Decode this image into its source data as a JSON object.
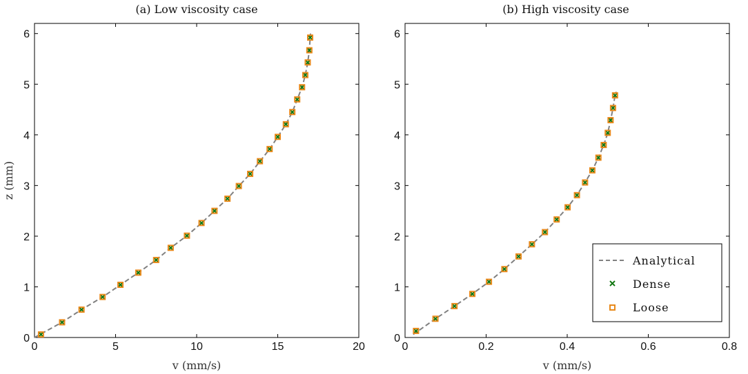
{
  "chart_data": [
    {
      "type": "scatter",
      "title": "(a) Low viscosity case",
      "xlabel": "v (mm/s)",
      "ylabel": "z (mm)",
      "xlim": [
        0,
        20
      ],
      "ylim": [
        0,
        6.2
      ],
      "xticks": [
        "0",
        "5",
        "10",
        "15",
        "20"
      ],
      "yticks": [
        "0",
        "1",
        "2",
        "3",
        "4",
        "5",
        "6"
      ],
      "grid": false,
      "series": [
        {
          "name": "Analytical",
          "style": "dashed-line",
          "color": "#808080",
          "x": [
            0.0,
            1.7,
            2.9,
            4.2,
            5.3,
            6.4,
            7.5,
            8.4,
            9.4,
            10.3,
            11.1,
            11.9,
            12.6,
            13.3,
            13.9,
            14.5,
            15.0,
            15.5,
            15.9,
            16.2,
            16.5,
            16.7,
            16.85,
            16.95,
            17.0,
            17.02
          ],
          "y": [
            0.0,
            0.3,
            0.55,
            0.8,
            1.04,
            1.28,
            1.53,
            1.77,
            2.01,
            2.26,
            2.5,
            2.74,
            2.99,
            3.23,
            3.48,
            3.72,
            3.96,
            4.21,
            4.45,
            4.7,
            4.94,
            5.18,
            5.43,
            5.67,
            5.92,
            6.0
          ]
        },
        {
          "name": "Dense",
          "style": "x-marker",
          "color": "#117711",
          "x": [
            0.4,
            1.7,
            2.9,
            4.2,
            5.3,
            6.4,
            7.5,
            8.4,
            9.4,
            10.3,
            11.1,
            11.9,
            12.6,
            13.3,
            13.9,
            14.5,
            15.0,
            15.5,
            15.9,
            16.2,
            16.5,
            16.7,
            16.85,
            16.95,
            17.0
          ],
          "y": [
            0.06,
            0.3,
            0.55,
            0.8,
            1.04,
            1.28,
            1.53,
            1.77,
            2.01,
            2.26,
            2.5,
            2.74,
            2.99,
            3.23,
            3.48,
            3.72,
            3.96,
            4.21,
            4.45,
            4.7,
            4.94,
            5.18,
            5.43,
            5.67,
            5.92
          ]
        },
        {
          "name": "Loose",
          "style": "square-marker",
          "color": "#e8891a",
          "x": [
            0.4,
            1.7,
            2.9,
            4.2,
            5.3,
            6.4,
            7.5,
            8.4,
            9.4,
            10.3,
            11.1,
            11.9,
            12.6,
            13.3,
            13.9,
            14.5,
            15.0,
            15.5,
            15.9,
            16.2,
            16.5,
            16.7,
            16.85,
            16.95,
            17.0
          ],
          "y": [
            0.06,
            0.3,
            0.55,
            0.8,
            1.04,
            1.28,
            1.53,
            1.77,
            2.01,
            2.26,
            2.5,
            2.74,
            2.99,
            3.23,
            3.48,
            3.72,
            3.96,
            4.21,
            4.45,
            4.7,
            4.94,
            5.18,
            5.43,
            5.67,
            5.92
          ]
        }
      ]
    },
    {
      "type": "scatter",
      "title": "(b) High viscosity case",
      "xlabel": "v (mm/s)",
      "ylabel": "",
      "xlim": [
        0,
        0.8
      ],
      "ylim": [
        0,
        6.2
      ],
      "xticks": [
        "0",
        "0.2",
        "0.4",
        "0.6",
        "0.8"
      ],
      "yticks": [
        "0",
        "1",
        "2",
        "3",
        "4",
        "5",
        "6"
      ],
      "grid": false,
      "legend": {
        "placement": "bottom-right",
        "entries": [
          "Analytical",
          "Dense",
          "Loose"
        ]
      },
      "series": [
        {
          "name": "Analytical",
          "style": "dashed-line",
          "color": "#808080",
          "x": [
            0.02,
            0.075,
            0.122,
            0.166,
            0.207,
            0.245,
            0.28,
            0.313,
            0.345,
            0.374,
            0.401,
            0.424,
            0.444,
            0.462,
            0.477,
            0.49,
            0.5,
            0.507,
            0.513,
            0.518,
            0.521
          ],
          "y": [
            0.06,
            0.37,
            0.62,
            0.86,
            1.1,
            1.35,
            1.6,
            1.84,
            2.08,
            2.33,
            2.57,
            2.81,
            3.06,
            3.3,
            3.55,
            3.8,
            4.04,
            4.29,
            4.53,
            4.78,
            4.85
          ]
        },
        {
          "name": "Dense",
          "style": "x-marker",
          "color": "#117711",
          "x": [
            0.027,
            0.075,
            0.122,
            0.166,
            0.207,
            0.245,
            0.28,
            0.313,
            0.345,
            0.374,
            0.401,
            0.424,
            0.444,
            0.462,
            0.477,
            0.49,
            0.5,
            0.507,
            0.513,
            0.518
          ],
          "y": [
            0.13,
            0.37,
            0.62,
            0.86,
            1.1,
            1.35,
            1.6,
            1.84,
            2.08,
            2.33,
            2.57,
            2.81,
            3.06,
            3.3,
            3.55,
            3.8,
            4.04,
            4.29,
            4.53,
            4.78
          ]
        },
        {
          "name": "Loose",
          "style": "square-marker",
          "color": "#e8891a",
          "x": [
            0.027,
            0.075,
            0.122,
            0.166,
            0.207,
            0.245,
            0.28,
            0.313,
            0.345,
            0.374,
            0.401,
            0.424,
            0.444,
            0.462,
            0.477,
            0.49,
            0.5,
            0.507,
            0.513,
            0.518
          ],
          "y": [
            0.13,
            0.37,
            0.62,
            0.86,
            1.1,
            1.35,
            1.6,
            1.84,
            2.08,
            2.33,
            2.57,
            2.81,
            3.06,
            3.3,
            3.55,
            3.8,
            4.04,
            4.29,
            4.53,
            4.78
          ]
        }
      ]
    }
  ]
}
